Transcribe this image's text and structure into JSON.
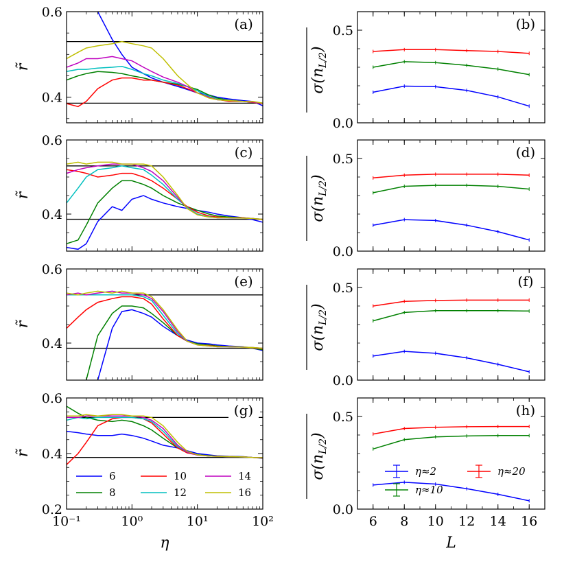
{
  "colors": {
    "L6": "#0000ff",
    "L8": "#008000",
    "L10": "#ff0000",
    "L12": "#00bfbf",
    "L14": "#bf00bf",
    "L16": "#bfbf00",
    "ref": "#000000"
  },
  "chart_data": [
    {
      "type": "line",
      "panel": "(a)",
      "xscale": "log",
      "xlim": [
        0.1,
        100
      ],
      "ylim": [
        0.34,
        0.6
      ],
      "yticks": [
        "0.4",
        "0.6"
      ],
      "xtick_labels": [],
      "ylabel": "r̃",
      "hlines": [
        0.386,
        0.53
      ],
      "x": [
        0.1,
        0.15,
        0.2,
        0.3,
        0.5,
        0.7,
        1,
        1.5,
        2,
        3,
        5,
        7,
        10,
        15,
        20,
        30,
        50,
        70,
        100
      ],
      "series": [
        {
          "name": "6",
          "values": [
            null,
            null,
            null,
            0.6,
            0.535,
            0.5,
            0.47,
            0.455,
            0.445,
            0.435,
            0.425,
            0.418,
            0.41,
            0.405,
            0.4,
            0.396,
            0.392,
            0.39,
            0.38
          ]
        },
        {
          "name": "8",
          "values": [
            0.44,
            0.45,
            0.455,
            0.46,
            0.458,
            0.455,
            0.45,
            0.445,
            0.44,
            0.435,
            0.43,
            0.425,
            0.418,
            0.405,
            0.398,
            0.393,
            0.39,
            0.388,
            0.385
          ]
        },
        {
          "name": "10",
          "values": [
            0.385,
            0.378,
            0.39,
            0.42,
            0.44,
            0.445,
            0.445,
            0.44,
            0.44,
            0.435,
            0.428,
            0.42,
            0.41,
            0.4,
            0.395,
            0.39,
            0.39,
            0.388,
            0.385
          ]
        },
        {
          "name": "12",
          "values": [
            0.46,
            0.465,
            0.465,
            0.468,
            0.47,
            0.472,
            0.465,
            0.455,
            0.45,
            0.44,
            0.432,
            0.425,
            0.415,
            0.402,
            0.395,
            0.392,
            0.39,
            0.389,
            0.386
          ]
        },
        {
          "name": "14",
          "values": [
            0.47,
            0.48,
            0.49,
            0.49,
            0.495,
            0.49,
            0.485,
            0.47,
            0.46,
            0.447,
            0.435,
            0.425,
            0.41,
            0.4,
            0.394,
            0.392,
            0.39,
            0.389,
            0.386
          ]
        },
        {
          "name": "16",
          "values": [
            0.49,
            0.505,
            0.515,
            0.52,
            0.525,
            0.53,
            0.525,
            0.52,
            0.515,
            0.49,
            0.45,
            0.43,
            0.41,
            0.398,
            0.394,
            0.392,
            0.39,
            0.39,
            0.386
          ]
        }
      ]
    },
    {
      "type": "line",
      "panel": "(b)",
      "xlim": [
        5,
        17
      ],
      "ylim": [
        0,
        0.6
      ],
      "yticks": [
        "0.0",
        "0.5"
      ],
      "xtick_labels": [],
      "ylabel": "σ(n_{L/2})",
      "x": [
        6,
        8,
        10,
        12,
        14,
        16
      ],
      "series": [
        {
          "name": "η≈2",
          "values": [
            0.165,
            0.198,
            0.195,
            0.175,
            0.14,
            0.09
          ]
        },
        {
          "name": "η≈10",
          "values": [
            0.3,
            0.33,
            0.325,
            0.31,
            0.29,
            0.26
          ]
        },
        {
          "name": "η≈20",
          "values": [
            0.385,
            0.395,
            0.395,
            0.39,
            0.385,
            0.375
          ]
        }
      ]
    },
    {
      "type": "line",
      "panel": "(c)",
      "xscale": "log",
      "xlim": [
        0.1,
        100
      ],
      "ylim": [
        0.3,
        0.6
      ],
      "yticks": [
        "0.4",
        "0.6"
      ],
      "xtick_labels": [],
      "ylabel": "r̃",
      "hlines": [
        0.386,
        0.53
      ],
      "x": [
        0.1,
        0.15,
        0.2,
        0.3,
        0.5,
        0.7,
        1,
        1.5,
        2,
        3,
        5,
        7,
        10,
        15,
        20,
        30,
        50,
        70,
        100
      ],
      "series": [
        {
          "name": "6",
          "values": [
            0.31,
            0.305,
            0.32,
            0.38,
            0.42,
            0.41,
            0.44,
            0.45,
            0.44,
            0.43,
            0.42,
            0.415,
            0.41,
            0.405,
            0.4,
            0.395,
            0.39,
            0.385,
            0.378
          ]
        },
        {
          "name": "8",
          "values": [
            0.32,
            0.33,
            0.37,
            0.43,
            0.47,
            0.49,
            0.49,
            0.48,
            0.47,
            0.45,
            0.43,
            0.42,
            0.41,
            0.4,
            0.395,
            0.392,
            0.39,
            0.388,
            0.385
          ]
        },
        {
          "name": "10",
          "values": [
            0.52,
            0.515,
            0.51,
            0.5,
            0.505,
            0.51,
            0.51,
            0.5,
            0.49,
            0.47,
            0.44,
            0.42,
            0.405,
            0.395,
            0.392,
            0.39,
            0.39,
            0.388,
            0.385
          ]
        },
        {
          "name": "12",
          "values": [
            0.43,
            0.47,
            0.5,
            0.52,
            0.525,
            0.53,
            0.525,
            0.52,
            0.505,
            0.48,
            0.44,
            0.418,
            0.4,
            0.393,
            0.39,
            0.39,
            0.389,
            0.388,
            0.386
          ]
        },
        {
          "name": "14",
          "values": [
            0.51,
            0.52,
            0.525,
            0.53,
            0.535,
            0.535,
            0.535,
            0.525,
            0.515,
            0.49,
            0.445,
            0.415,
            0.398,
            0.392,
            0.39,
            0.39,
            0.389,
            0.388,
            0.386
          ]
        },
        {
          "name": "16",
          "values": [
            0.535,
            0.54,
            0.535,
            0.54,
            0.54,
            0.535,
            0.535,
            0.535,
            0.53,
            0.5,
            0.45,
            0.415,
            0.398,
            0.392,
            0.39,
            0.39,
            0.389,
            0.388,
            0.386
          ]
        }
      ]
    },
    {
      "type": "line",
      "panel": "(d)",
      "xlim": [
        5,
        17
      ],
      "ylim": [
        0,
        0.6
      ],
      "yticks": [
        "0.0",
        "0.5"
      ],
      "xtick_labels": [],
      "ylabel": "σ(n_{L/2})",
      "x": [
        6,
        8,
        10,
        12,
        14,
        16
      ],
      "series": [
        {
          "name": "η≈2",
          "values": [
            0.14,
            0.17,
            0.165,
            0.14,
            0.105,
            0.06
          ]
        },
        {
          "name": "η≈10",
          "values": [
            0.315,
            0.35,
            0.355,
            0.355,
            0.35,
            0.335
          ]
        },
        {
          "name": "η≈20",
          "values": [
            0.395,
            0.41,
            0.415,
            0.415,
            0.415,
            0.41
          ]
        }
      ]
    },
    {
      "type": "line",
      "panel": "(e)",
      "xscale": "log",
      "xlim": [
        0.1,
        100
      ],
      "ylim": [
        0.3,
        0.6
      ],
      "yticks": [
        "0.4",
        "0.6"
      ],
      "xtick_labels": [],
      "ylabel": "r̃",
      "hlines": [
        0.386,
        0.53
      ],
      "x": [
        0.1,
        0.15,
        0.2,
        0.3,
        0.5,
        0.7,
        1,
        1.5,
        2,
        3,
        5,
        7,
        10,
        15,
        20,
        30,
        50,
        70,
        100
      ],
      "series": [
        {
          "name": "6",
          "values": [
            null,
            null,
            null,
            0.3,
            0.44,
            0.485,
            0.49,
            0.48,
            0.47,
            0.445,
            0.42,
            0.408,
            0.4,
            0.398,
            0.395,
            0.392,
            0.39,
            0.386,
            0.38
          ]
        },
        {
          "name": "8",
          "values": [
            null,
            null,
            0.3,
            0.42,
            0.48,
            0.5,
            0.5,
            0.495,
            0.48,
            0.455,
            0.42,
            0.405,
            0.398,
            0.395,
            0.392,
            0.39,
            0.389,
            0.386,
            0.382
          ]
        },
        {
          "name": "10",
          "values": [
            0.44,
            0.47,
            0.49,
            0.51,
            0.52,
            0.525,
            0.525,
            0.52,
            0.505,
            0.465,
            0.42,
            0.405,
            0.396,
            0.393,
            0.391,
            0.39,
            0.389,
            0.387,
            0.384
          ]
        },
        {
          "name": "12",
          "values": [
            0.53,
            0.53,
            0.53,
            0.53,
            0.53,
            0.53,
            0.53,
            0.525,
            0.515,
            0.475,
            0.425,
            0.405,
            0.396,
            0.392,
            0.39,
            0.39,
            0.389,
            0.388,
            0.385
          ]
        },
        {
          "name": "14",
          "values": [
            0.53,
            0.535,
            0.53,
            0.535,
            0.54,
            0.535,
            0.535,
            0.53,
            0.52,
            0.485,
            0.43,
            0.405,
            0.395,
            0.392,
            0.39,
            0.39,
            0.389,
            0.388,
            0.386
          ]
        },
        {
          "name": "16",
          "values": [
            0.535,
            0.53,
            0.535,
            0.54,
            0.535,
            0.54,
            0.535,
            0.535,
            0.525,
            0.49,
            0.435,
            0.405,
            0.395,
            0.392,
            0.39,
            0.39,
            0.389,
            0.388,
            0.386
          ]
        }
      ]
    },
    {
      "type": "line",
      "panel": "(f)",
      "xlim": [
        5,
        17
      ],
      "ylim": [
        0,
        0.6
      ],
      "yticks": [
        "0.0",
        "0.5"
      ],
      "xtick_labels": [],
      "ylabel": "σ(n_{L/2})",
      "x": [
        6,
        8,
        10,
        12,
        14,
        16
      ],
      "series": [
        {
          "name": "η≈2",
          "values": [
            0.13,
            0.155,
            0.145,
            0.12,
            0.085,
            0.045
          ]
        },
        {
          "name": "η≈10",
          "values": [
            0.32,
            0.365,
            0.375,
            0.375,
            0.375,
            0.373
          ]
        },
        {
          "name": "η≈20",
          "values": [
            0.4,
            0.425,
            0.43,
            0.432,
            0.432,
            0.432
          ]
        }
      ]
    },
    {
      "type": "line",
      "panel": "(g)",
      "xscale": "log",
      "xlim": [
        0.1,
        100
      ],
      "ylim": [
        0.2,
        0.6
      ],
      "yticks": [
        "0.2",
        "0.4",
        "0.6"
      ],
      "xtick_labels": [
        "10⁻¹",
        "10⁰",
        "10¹",
        "10²"
      ],
      "xlabel": "η",
      "ylabel": "r̃",
      "hlines": [
        0.386,
        0.53
      ],
      "x": [
        0.1,
        0.15,
        0.2,
        0.3,
        0.5,
        0.7,
        1,
        1.5,
        2,
        3,
        5,
        7,
        10,
        15,
        20,
        30,
        50,
        70,
        100
      ],
      "series": [
        {
          "name": "6",
          "values": [
            0.48,
            0.475,
            0.47,
            0.465,
            0.465,
            0.47,
            0.465,
            0.455,
            0.445,
            0.43,
            0.42,
            0.41,
            0.4,
            0.395,
            0.392,
            0.39,
            0.389,
            0.386,
            0.383
          ]
        },
        {
          "name": "8",
          "values": [
            0.57,
            0.545,
            0.53,
            0.52,
            0.515,
            0.52,
            0.515,
            0.5,
            0.485,
            0.455,
            0.42,
            0.405,
            0.396,
            0.392,
            0.39,
            0.389,
            0.388,
            0.386,
            0.384
          ]
        },
        {
          "name": "10",
          "values": [
            0.36,
            0.4,
            0.44,
            0.5,
            0.525,
            0.53,
            0.53,
            0.525,
            0.51,
            0.47,
            0.42,
            0.402,
            0.395,
            0.391,
            0.39,
            0.389,
            0.388,
            0.386,
            0.384
          ]
        },
        {
          "name": "12",
          "values": [
            0.52,
            0.53,
            0.525,
            0.53,
            0.53,
            0.53,
            0.53,
            0.525,
            0.515,
            0.48,
            0.425,
            0.405,
            0.395,
            0.391,
            0.39,
            0.389,
            0.388,
            0.386,
            0.385
          ]
        },
        {
          "name": "14",
          "values": [
            0.53,
            0.53,
            0.535,
            0.535,
            0.535,
            0.535,
            0.535,
            0.53,
            0.52,
            0.49,
            0.43,
            0.405,
            0.394,
            0.391,
            0.39,
            0.389,
            0.388,
            0.386,
            0.385
          ]
        },
        {
          "name": "16",
          "values": [
            0.535,
            0.535,
            0.54,
            0.535,
            0.54,
            0.54,
            0.535,
            0.535,
            0.53,
            0.5,
            0.44,
            0.408,
            0.395,
            0.391,
            0.39,
            0.389,
            0.388,
            0.386,
            0.385
          ]
        }
      ],
      "legend": {
        "entries": [
          "6",
          "8",
          "10",
          "12",
          "14",
          "16"
        ],
        "placement": "lower-left"
      }
    },
    {
      "type": "line",
      "panel": "(h)",
      "xlim": [
        5,
        17
      ],
      "ylim": [
        0,
        0.6
      ],
      "yticks": [
        "0.0",
        "0.5"
      ],
      "xtick_labels": [
        "6",
        "8",
        "10",
        "12",
        "14",
        "16"
      ],
      "xlabel": "L",
      "ylabel": "σ(n_{L/2})",
      "x": [
        6,
        8,
        10,
        12,
        14,
        16
      ],
      "series": [
        {
          "name": "η≈2",
          "values": [
            0.13,
            0.145,
            0.135,
            0.11,
            0.08,
            0.045
          ]
        },
        {
          "name": "η≈10",
          "values": [
            0.325,
            0.375,
            0.39,
            0.395,
            0.397,
            0.397
          ]
        },
        {
          "name": "η≈20",
          "values": [
            0.405,
            0.435,
            0.442,
            0.445,
            0.446,
            0.446
          ]
        }
      ],
      "legend": {
        "entries": [
          "η≈2",
          "η≈20",
          "η≈10"
        ],
        "placement": "lower-left"
      }
    }
  ]
}
